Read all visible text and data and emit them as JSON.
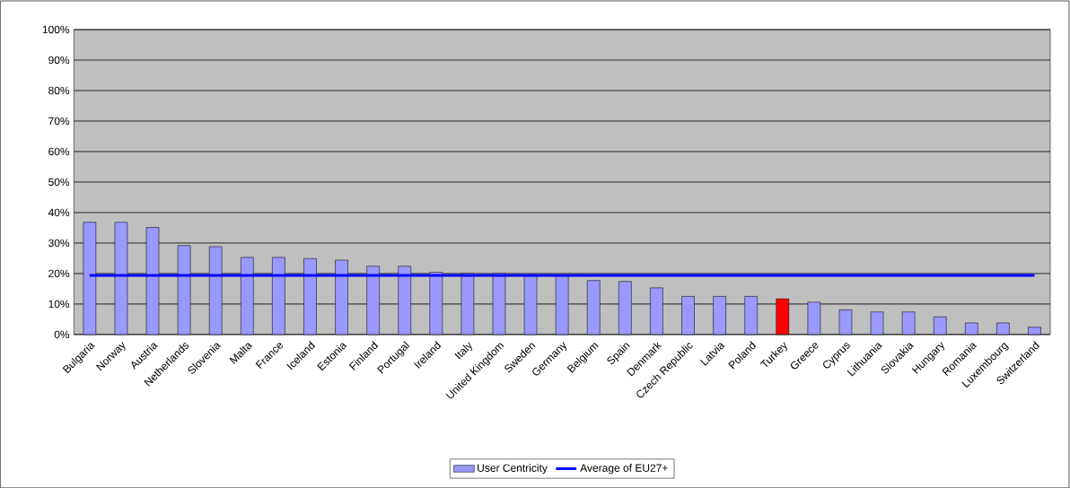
{
  "chart_data": {
    "type": "bar",
    "categories": [
      "Bulgaria",
      "Norway",
      "Austria",
      "Netherlands",
      "Slovenia",
      "Malta",
      "France",
      "Iceland",
      "Estonia",
      "Finland",
      "Portugal",
      "Ireland",
      "Italy",
      "United Kingdom",
      "Sweden",
      "Germany",
      "Belgium",
      "Spain",
      "Denmark",
      "Czech Republic",
      "Latvia",
      "Poland",
      "Turkey",
      "Greece",
      "Cyprus",
      "Lithuania",
      "Slovakia",
      "Hungary",
      "Romania",
      "Luxembourg",
      "Switzerland"
    ],
    "series": [
      {
        "name": "User Centricity",
        "color": "#9999ff",
        "colors": [
          "#9999ff",
          "#9999ff",
          "#9999ff",
          "#9999ff",
          "#9999ff",
          "#9999ff",
          "#9999ff",
          "#9999ff",
          "#9999ff",
          "#9999ff",
          "#9999ff",
          "#9999ff",
          "#9999ff",
          "#9999ff",
          "#9999ff",
          "#9999ff",
          "#9999ff",
          "#9999ff",
          "#9999ff",
          "#9999ff",
          "#9999ff",
          "#9999ff",
          "#ff0000",
          "#9999ff",
          "#9999ff",
          "#9999ff",
          "#9999ff",
          "#9999ff",
          "#9999ff",
          "#9999ff",
          "#9999ff"
        ],
        "values": [
          36.8,
          36.8,
          35.1,
          29.2,
          28.8,
          25.3,
          25.3,
          24.9,
          24.4,
          22.4,
          22.4,
          20.4,
          20.1,
          20.1,
          19.5,
          19.5,
          17.7,
          17.4,
          15.3,
          12.5,
          12.5,
          12.5,
          11.7,
          10.6,
          8.1,
          7.4,
          7.4,
          5.8,
          3.8,
          3.8,
          2.4
        ]
      },
      {
        "name": "Average of EU27+",
        "type": "line",
        "color": "#0000ff",
        "values": [
          19.4,
          19.4,
          19.4,
          19.4,
          19.4,
          19.4,
          19.4,
          19.4,
          19.4,
          19.4,
          19.4,
          19.4,
          19.4,
          19.4,
          19.4,
          19.4,
          19.4,
          19.4,
          19.4,
          19.4,
          19.4,
          19.4,
          19.4,
          19.4,
          19.4,
          19.4,
          19.4,
          19.4,
          19.4,
          19.4,
          19.4
        ]
      }
    ],
    "ylim": [
      0,
      100
    ],
    "yticks": [
      {
        "value": 0,
        "label": "0%"
      },
      {
        "value": 10,
        "label": "10%"
      },
      {
        "value": 20,
        "label": "20%"
      },
      {
        "value": 30,
        "label": "30%"
      },
      {
        "value": 40,
        "label": "40%"
      },
      {
        "value": 50,
        "label": "50%"
      },
      {
        "value": 60,
        "label": "60%"
      },
      {
        "value": 70,
        "label": "70%"
      },
      {
        "value": 80,
        "label": "80%"
      },
      {
        "value": 90,
        "label": "90%"
      },
      {
        "value": 100,
        "label": "100%"
      }
    ],
    "grid": "y",
    "legend": "bottom"
  }
}
